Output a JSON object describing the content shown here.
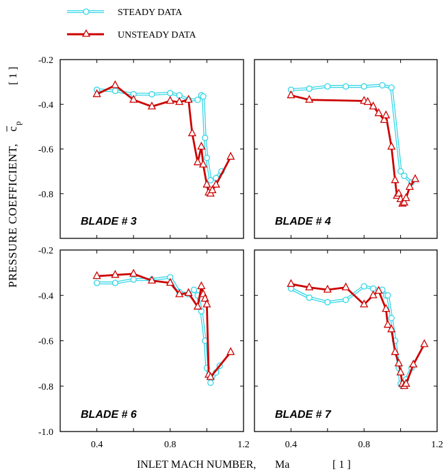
{
  "legend": {
    "steady_label": "STEADY DATA",
    "unsteady_label": "UNSTEADY DATA"
  },
  "y_axis_label": "PRESSURE COEFFICIENT,",
  "y_symbol": "c",
  "y_symbol_sub": "p",
  "y_unit": "[ 1 ]",
  "x_axis_label": "INLET MACH NUMBER,",
  "x_symbol": "Ma",
  "x_unit": "[ 1 ]",
  "colors": {
    "steady": "#35d6e6",
    "unsteady": "#cc0000"
  },
  "chart_data": [
    {
      "type": "line",
      "title": "BLADE # 3",
      "xlim": [
        0.2,
        1.2
      ],
      "ylim": [
        -1.0,
        -0.2
      ],
      "xticks": [
        "0.4",
        "0.8",
        "1.2"
      ],
      "yticks": [
        "-0.2",
        "-0.4",
        "-0.6",
        "-0.8"
      ],
      "series": [
        {
          "name": "STEADY DATA",
          "x": [
            0.4,
            0.5,
            0.6,
            0.7,
            0.8,
            0.85,
            0.9,
            0.95,
            0.97,
            0.98,
            0.99,
            1.0,
            1.02,
            1.05,
            1.08
          ],
          "y": [
            -0.335,
            -0.34,
            -0.355,
            -0.355,
            -0.35,
            -0.36,
            -0.38,
            -0.38,
            -0.36,
            -0.365,
            -0.55,
            -0.64,
            -0.74,
            -0.73,
            -0.7
          ]
        },
        {
          "name": "UNSTEADY DATA",
          "x": [
            0.4,
            0.5,
            0.6,
            0.7,
            0.8,
            0.85,
            0.9,
            0.92,
            0.95,
            0.97,
            0.98,
            1.0,
            1.01,
            1.02,
            1.03,
            1.05,
            1.13
          ],
          "y": [
            -0.355,
            -0.315,
            -0.38,
            -0.41,
            -0.385,
            -0.39,
            -0.38,
            -0.53,
            -0.66,
            -0.59,
            -0.67,
            -0.76,
            -0.795,
            -0.8,
            -0.785,
            -0.76,
            -0.635
          ]
        }
      ]
    },
    {
      "type": "line",
      "title": "BLADE # 4",
      "xlim": [
        0.2,
        1.2
      ],
      "ylim": [
        -1.0,
        -0.2
      ],
      "xticks": [
        "0.4",
        "0.8",
        "1.2"
      ],
      "yticks": [
        "-0.2",
        "-0.4",
        "-0.6",
        "-0.8"
      ],
      "series": [
        {
          "name": "STEADY DATA",
          "x": [
            0.4,
            0.5,
            0.6,
            0.7,
            0.8,
            0.9,
            0.95,
            1.0,
            1.02,
            1.06
          ],
          "y": [
            -0.335,
            -0.33,
            -0.32,
            -0.32,
            -0.32,
            -0.315,
            -0.325,
            -0.7,
            -0.72,
            -0.75
          ]
        },
        {
          "name": "UNSTEADY DATA",
          "x": [
            0.4,
            0.5,
            0.8,
            0.82,
            0.85,
            0.88,
            0.91,
            0.92,
            0.95,
            0.97,
            0.98,
            0.99,
            1.0,
            1.01,
            1.02,
            1.03,
            1.05,
            1.08
          ],
          "y": [
            -0.36,
            -0.38,
            -0.385,
            -0.39,
            -0.41,
            -0.44,
            -0.47,
            -0.45,
            -0.59,
            -0.74,
            -0.81,
            -0.8,
            -0.825,
            -0.845,
            -0.84,
            -0.82,
            -0.77,
            -0.735
          ]
        }
      ]
    },
    {
      "type": "line",
      "title": "BLADE # 6",
      "xlim": [
        0.2,
        1.2
      ],
      "ylim": [
        -1.0,
        -0.2
      ],
      "xticks": [
        "0.4",
        "0.8",
        "1.2"
      ],
      "yticks": [
        "-0.2",
        "-0.4",
        "-0.6",
        "-0.8",
        "-1.0"
      ],
      "series": [
        {
          "name": "STEADY DATA",
          "x": [
            0.4,
            0.5,
            0.6,
            0.7,
            0.8,
            0.85,
            0.9,
            0.93,
            0.95,
            0.97,
            0.99,
            1.0,
            1.02,
            1.05,
            1.07
          ],
          "y": [
            -0.345,
            -0.345,
            -0.33,
            -0.33,
            -0.32,
            -0.385,
            -0.395,
            -0.375,
            -0.4,
            -0.47,
            -0.6,
            -0.72,
            -0.785,
            -0.74,
            -0.71
          ]
        },
        {
          "name": "UNSTEADY DATA",
          "x": [
            0.4,
            0.5,
            0.6,
            0.7,
            0.8,
            0.85,
            0.9,
            0.95,
            0.97,
            0.98,
            0.99,
            1.0,
            1.01,
            1.02,
            1.13
          ],
          "y": [
            -0.315,
            -0.31,
            -0.305,
            -0.335,
            -0.345,
            -0.395,
            -0.39,
            -0.45,
            -0.36,
            -0.395,
            -0.415,
            -0.44,
            -0.75,
            -0.76,
            -0.65
          ]
        }
      ]
    },
    {
      "type": "line",
      "title": "BLADE # 7",
      "xlim": [
        0.2,
        1.2
      ],
      "ylim": [
        -1.0,
        -0.2
      ],
      "xticks": [
        "0.4",
        "0.8",
        "1.2"
      ],
      "yticks": [
        "-0.2",
        "-0.4",
        "-0.6",
        "-0.8"
      ],
      "series": [
        {
          "name": "STEADY DATA",
          "x": [
            0.4,
            0.5,
            0.6,
            0.7,
            0.8,
            0.85,
            0.9,
            0.92,
            0.93,
            0.95,
            0.97,
            0.99,
            1.0,
            1.01,
            1.03,
            1.06
          ],
          "y": [
            -0.37,
            -0.41,
            -0.43,
            -0.42,
            -0.36,
            -0.37,
            -0.375,
            -0.4,
            -0.4,
            -0.5,
            -0.6,
            -0.72,
            -0.79,
            -0.8,
            -0.77,
            -0.72
          ]
        },
        {
          "name": "UNSTEADY DATA",
          "x": [
            0.4,
            0.5,
            0.6,
            0.7,
            0.8,
            0.85,
            0.88,
            0.92,
            0.93,
            0.95,
            0.97,
            0.99,
            1.0,
            1.01,
            1.02,
            1.03,
            1.07,
            1.13
          ],
          "y": [
            -0.35,
            -0.365,
            -0.375,
            -0.365,
            -0.44,
            -0.4,
            -0.38,
            -0.46,
            -0.53,
            -0.55,
            -0.65,
            -0.7,
            -0.74,
            -0.79,
            -0.8,
            -0.79,
            -0.705,
            -0.615
          ]
        }
      ]
    }
  ]
}
